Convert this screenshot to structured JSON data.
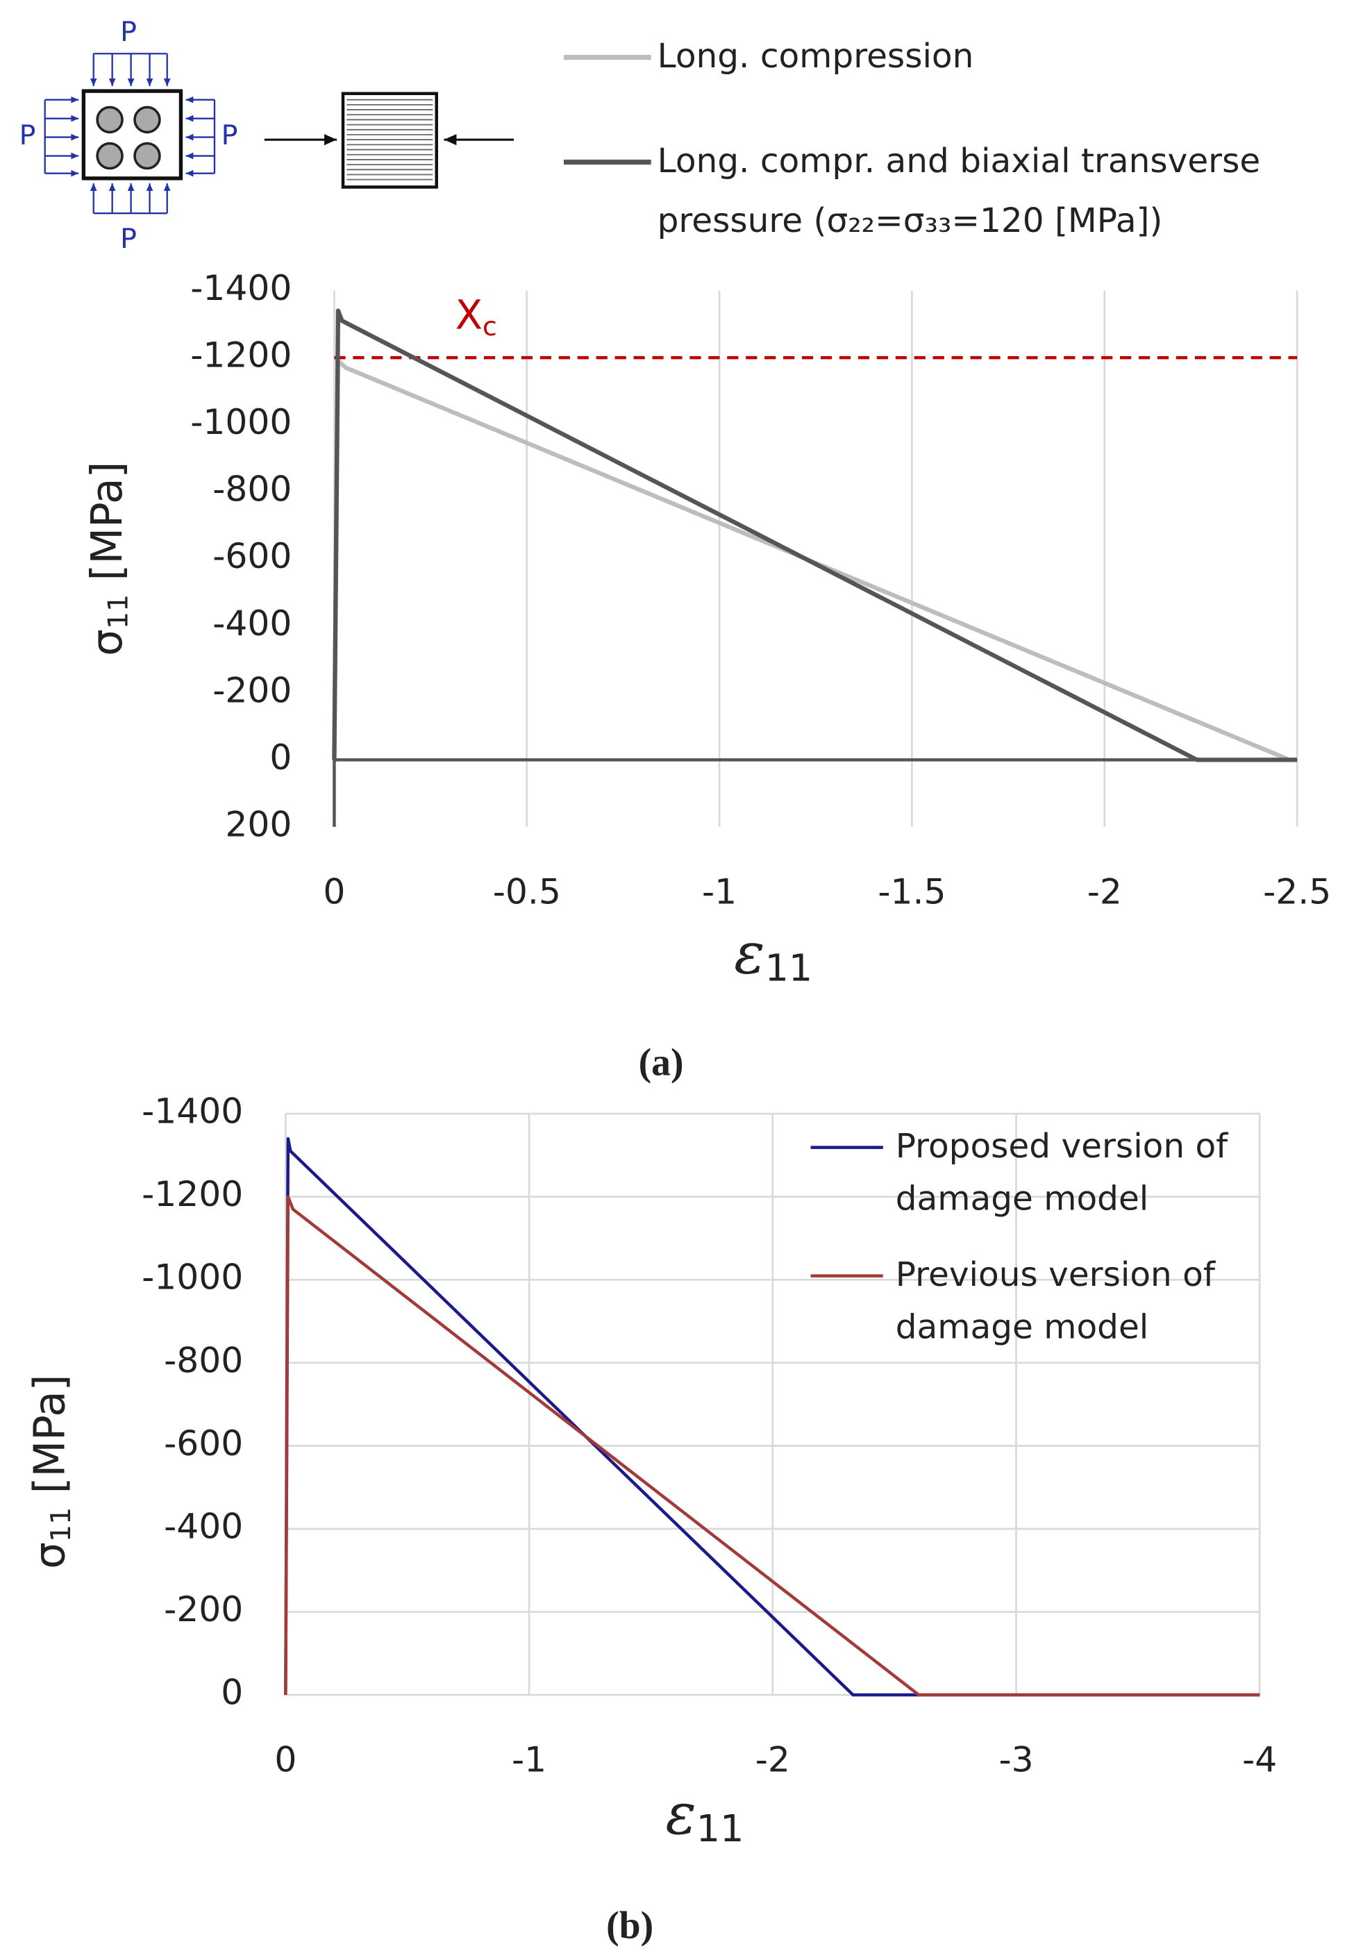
{
  "diagram": {
    "labels": [
      "P",
      "P",
      "P",
      "P"
    ]
  },
  "chart_data": [
    {
      "type": "line",
      "caption": "(a)",
      "y_label": {
        "symbol": "σ",
        "subscript": "11",
        "unit": "[MPa]"
      },
      "x_label": {
        "symbol": "ε",
        "subscript": "11"
      },
      "xlim": [
        0,
        -2.5
      ],
      "xticks": [
        0,
        -0.5,
        -1,
        -1.5,
        -2,
        -2.5
      ],
      "ylim": [
        200,
        -1400
      ],
      "yticks": [
        -1400,
        -1200,
        -1000,
        -800,
        -600,
        -400,
        -200,
        0,
        200
      ],
      "grid": "x",
      "legend": "above",
      "reference_line": {
        "value": -1200,
        "label": "X",
        "subscript": "c",
        "color": "#c00000"
      },
      "series": [
        {
          "name": "Long. compression",
          "color": "#bdbdbd",
          "x": [
            0,
            -0.01,
            -0.03,
            -2.48,
            -2.5
          ],
          "values": [
            0,
            -1190,
            -1170,
            0,
            0
          ]
        },
        {
          "name": "Long. compr. and biaxial transverse pressure (σ₂₂=σ₃₃=120 [MPa])",
          "color": "#555555",
          "x": [
            0,
            -0.01,
            -0.02,
            -2.24,
            -2.5
          ],
          "values": [
            0,
            -1340,
            -1310,
            0,
            0
          ]
        }
      ]
    },
    {
      "type": "line",
      "caption": "(b)",
      "y_label": {
        "symbol": "σ",
        "subscript": "11",
        "unit": "[MPa]"
      },
      "x_label": {
        "symbol": "ε",
        "subscript": "11"
      },
      "xlim": [
        0,
        -4
      ],
      "xticks": [
        0,
        -1,
        -2,
        -3,
        -4
      ],
      "ylim": [
        0,
        -1400
      ],
      "yticks": [
        -1400,
        -1200,
        -1000,
        -800,
        -600,
        -400,
        -200,
        0
      ],
      "grid": "both",
      "legend": "upper right",
      "series": [
        {
          "name": "Proposed version of damage model",
          "color": "#1a1a8c",
          "x": [
            0,
            -0.01,
            -0.02,
            -2.33,
            -4
          ],
          "values": [
            0,
            -1340,
            -1310,
            0,
            0
          ]
        },
        {
          "name": "Previous version of damage model",
          "color": "#a33a3a",
          "x": [
            0,
            -0.01,
            -0.03,
            -2.6,
            -4
          ],
          "values": [
            0,
            -1200,
            -1170,
            0,
            0
          ]
        }
      ]
    }
  ]
}
